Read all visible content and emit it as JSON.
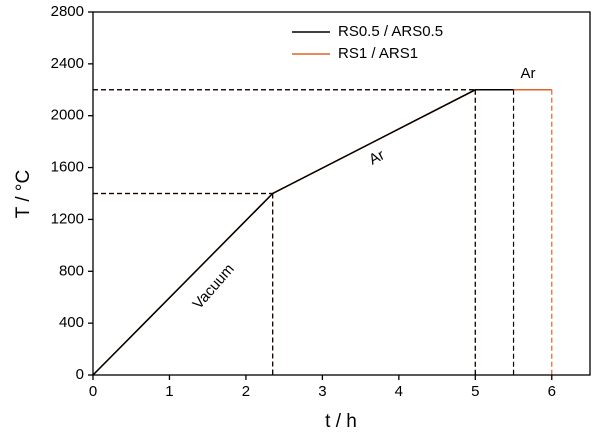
{
  "chart_data": {
    "type": "line",
    "x_label": "t / h",
    "y_label": "T / °C",
    "series": [
      {
        "name": "RS1 / ARS1",
        "color": "#e0622a",
        "x": [
          0,
          2.35,
          5,
          6
        ],
        "values": [
          0,
          1400,
          2200,
          2200
        ]
      },
      {
        "name": "RS0.5 / ARS0.5",
        "color": "#000000",
        "x": [
          0,
          2.35,
          5,
          5.5
        ],
        "values": [
          0,
          1400,
          2200,
          2200
        ]
      }
    ],
    "annotations": [
      "Vacuum",
      "Ar",
      "Ar"
    ],
    "xlim": [
      0,
      6.5
    ],
    "xticks": [
      0,
      1,
      2,
      3,
      4,
      5,
      6
    ],
    "ylim": [
      0,
      2800
    ],
    "yticks": [
      0,
      400,
      800,
      1200,
      1600,
      2000,
      2400,
      2800
    ],
    "drop_lines": true,
    "legend": "upper right"
  }
}
